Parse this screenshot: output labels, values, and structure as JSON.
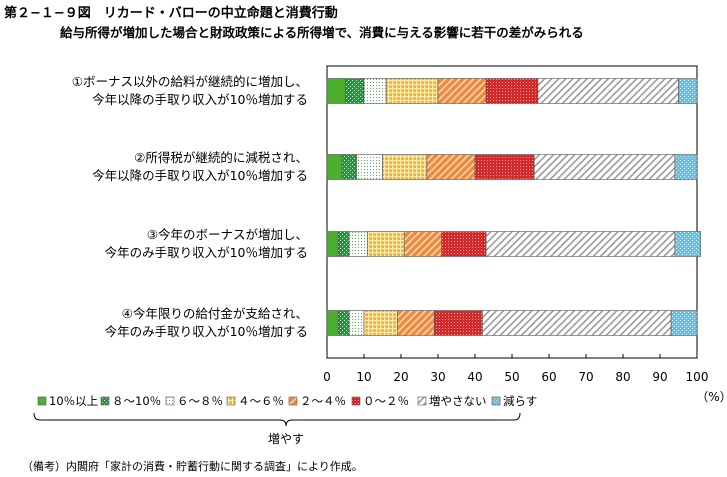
{
  "header": {
    "title": "第２−１−９図　リカード・バローの中立命題と消費行動",
    "subtitle": "給与所得が増加した場合と財政政策による所得増で、消費に与える影響に若干の差がみられる"
  },
  "note": "（備考）内閣府「家計の消費・貯蓄行動に関する調査」により作成。",
  "colors": {
    "s1": "#4caf2e",
    "s2": "#1f9a3a",
    "s3": "#ffffff",
    "s4": "#f5b81c",
    "s5": "#ee8a3a",
    "s6": "#d42a2a",
    "s7": "#d9d9d9",
    "s8": "#5cc4e6"
  },
  "chart_data": {
    "type": "bar",
    "orientation": "horizontal",
    "stacked": true,
    "categories": [
      [
        "①ボーナス以外の給料が継続的に増加し、",
        "今年以降の手取り収入が10％増加する"
      ],
      [
        "②所得税が継続的に減税され、",
        "今年以降の手取り収入が10％増加する"
      ],
      [
        "③今年のボーナスが増加し、",
        "今年のみ手取り収入が10％増加する"
      ],
      [
        "④今年限りの給付金が支給され、",
        "今年のみ手取り収入が10％増加する"
      ]
    ],
    "series": [
      {
        "name": "10％以上",
        "values": [
          5,
          4,
          3,
          3
        ]
      },
      {
        "name": "８〜10％",
        "values": [
          5,
          4,
          3,
          3
        ]
      },
      {
        "name": "６〜８％",
        "values": [
          6,
          7,
          5,
          4
        ]
      },
      {
        "name": "４〜６％",
        "values": [
          14,
          12,
          10,
          9
        ]
      },
      {
        "name": "２〜４％",
        "values": [
          13,
          13,
          10,
          10
        ]
      },
      {
        "name": "０〜２％",
        "values": [
          14,
          16,
          12,
          13
        ]
      },
      {
        "name": "増やさない",
        "values": [
          38,
          38,
          51,
          51
        ]
      },
      {
        "name": "減らす",
        "values": [
          5,
          6,
          7,
          7
        ]
      }
    ],
    "xlim": [
      0,
      100
    ],
    "xticks": [
      "0",
      "10",
      "20",
      "30",
      "40",
      "50",
      "60",
      "70",
      "80",
      "90",
      "100"
    ],
    "unit": "（%）",
    "bracket_label": "増やす",
    "legend_position": "bottom"
  }
}
